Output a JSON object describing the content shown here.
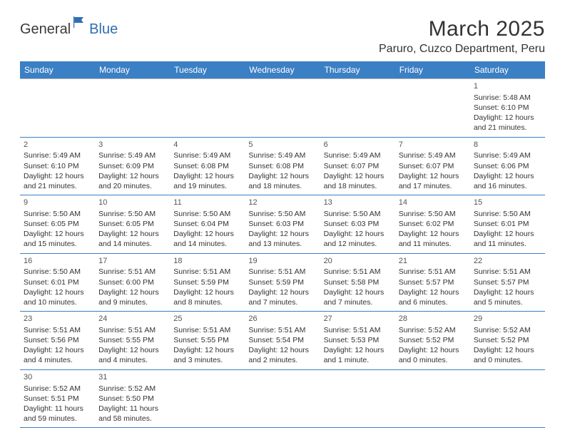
{
  "logo": {
    "part1": "General",
    "part2": "Blue"
  },
  "title": "March 2025",
  "location": "Paruro, Cuzco Department, Peru",
  "colors": {
    "header_bg": "#3b7fc4",
    "header_fg": "#ffffff",
    "cell_border_top": "#b8b8b8",
    "cell_border_bottom": "#3b7fc4",
    "text": "#333333",
    "logo_gray": "#3a3a3a",
    "logo_blue": "#2f6fb0"
  },
  "weekdays": [
    "Sunday",
    "Monday",
    "Tuesday",
    "Wednesday",
    "Thursday",
    "Friday",
    "Saturday"
  ],
  "weeks": [
    [
      null,
      null,
      null,
      null,
      null,
      null,
      {
        "n": "1",
        "sr": "5:48 AM",
        "ss": "6:10 PM",
        "dl": "12 hours and 21 minutes."
      }
    ],
    [
      {
        "n": "2",
        "sr": "5:49 AM",
        "ss": "6:10 PM",
        "dl": "12 hours and 21 minutes."
      },
      {
        "n": "3",
        "sr": "5:49 AM",
        "ss": "6:09 PM",
        "dl": "12 hours and 20 minutes."
      },
      {
        "n": "4",
        "sr": "5:49 AM",
        "ss": "6:08 PM",
        "dl": "12 hours and 19 minutes."
      },
      {
        "n": "5",
        "sr": "5:49 AM",
        "ss": "6:08 PM",
        "dl": "12 hours and 18 minutes."
      },
      {
        "n": "6",
        "sr": "5:49 AM",
        "ss": "6:07 PM",
        "dl": "12 hours and 18 minutes."
      },
      {
        "n": "7",
        "sr": "5:49 AM",
        "ss": "6:07 PM",
        "dl": "12 hours and 17 minutes."
      },
      {
        "n": "8",
        "sr": "5:49 AM",
        "ss": "6:06 PM",
        "dl": "12 hours and 16 minutes."
      }
    ],
    [
      {
        "n": "9",
        "sr": "5:50 AM",
        "ss": "6:05 PM",
        "dl": "12 hours and 15 minutes."
      },
      {
        "n": "10",
        "sr": "5:50 AM",
        "ss": "6:05 PM",
        "dl": "12 hours and 14 minutes."
      },
      {
        "n": "11",
        "sr": "5:50 AM",
        "ss": "6:04 PM",
        "dl": "12 hours and 14 minutes."
      },
      {
        "n": "12",
        "sr": "5:50 AM",
        "ss": "6:03 PM",
        "dl": "12 hours and 13 minutes."
      },
      {
        "n": "13",
        "sr": "5:50 AM",
        "ss": "6:03 PM",
        "dl": "12 hours and 12 minutes."
      },
      {
        "n": "14",
        "sr": "5:50 AM",
        "ss": "6:02 PM",
        "dl": "12 hours and 11 minutes."
      },
      {
        "n": "15",
        "sr": "5:50 AM",
        "ss": "6:01 PM",
        "dl": "12 hours and 11 minutes."
      }
    ],
    [
      {
        "n": "16",
        "sr": "5:50 AM",
        "ss": "6:01 PM",
        "dl": "12 hours and 10 minutes."
      },
      {
        "n": "17",
        "sr": "5:51 AM",
        "ss": "6:00 PM",
        "dl": "12 hours and 9 minutes."
      },
      {
        "n": "18",
        "sr": "5:51 AM",
        "ss": "5:59 PM",
        "dl": "12 hours and 8 minutes."
      },
      {
        "n": "19",
        "sr": "5:51 AM",
        "ss": "5:59 PM",
        "dl": "12 hours and 7 minutes."
      },
      {
        "n": "20",
        "sr": "5:51 AM",
        "ss": "5:58 PM",
        "dl": "12 hours and 7 minutes."
      },
      {
        "n": "21",
        "sr": "5:51 AM",
        "ss": "5:57 PM",
        "dl": "12 hours and 6 minutes."
      },
      {
        "n": "22",
        "sr": "5:51 AM",
        "ss": "5:57 PM",
        "dl": "12 hours and 5 minutes."
      }
    ],
    [
      {
        "n": "23",
        "sr": "5:51 AM",
        "ss": "5:56 PM",
        "dl": "12 hours and 4 minutes."
      },
      {
        "n": "24",
        "sr": "5:51 AM",
        "ss": "5:55 PM",
        "dl": "12 hours and 4 minutes."
      },
      {
        "n": "25",
        "sr": "5:51 AM",
        "ss": "5:55 PM",
        "dl": "12 hours and 3 minutes."
      },
      {
        "n": "26",
        "sr": "5:51 AM",
        "ss": "5:54 PM",
        "dl": "12 hours and 2 minutes."
      },
      {
        "n": "27",
        "sr": "5:51 AM",
        "ss": "5:53 PM",
        "dl": "12 hours and 1 minute."
      },
      {
        "n": "28",
        "sr": "5:52 AM",
        "ss": "5:52 PM",
        "dl": "12 hours and 0 minutes."
      },
      {
        "n": "29",
        "sr": "5:52 AM",
        "ss": "5:52 PM",
        "dl": "12 hours and 0 minutes."
      }
    ],
    [
      {
        "n": "30",
        "sr": "5:52 AM",
        "ss": "5:51 PM",
        "dl": "11 hours and 59 minutes."
      },
      {
        "n": "31",
        "sr": "5:52 AM",
        "ss": "5:50 PM",
        "dl": "11 hours and 58 minutes."
      },
      null,
      null,
      null,
      null,
      null
    ]
  ],
  "labels": {
    "sunrise": "Sunrise:",
    "sunset": "Sunset:",
    "daylight": "Daylight:"
  }
}
